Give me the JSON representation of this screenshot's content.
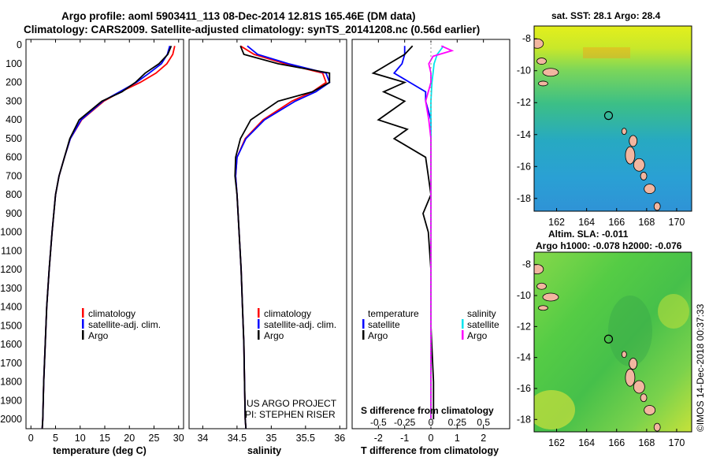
{
  "header": {
    "title_line1": "Argo profile: aoml 5903411_113 08-Dec-2014 12.81S 165.46E (DM data)",
    "title_line2": "Climatology: CARS2009. Satellite-adjusted climatology: synTS_20141208.nc (0.56d earlier)"
  },
  "depth_ticks": [
    0,
    100,
    200,
    300,
    400,
    500,
    600,
    700,
    800,
    900,
    1000,
    1100,
    1200,
    1300,
    1400,
    1500,
    1600,
    1700,
    1800,
    1900,
    2000
  ],
  "colors": {
    "climatology": "#ff0000",
    "satellite": "#0000ff",
    "argo": "#000000",
    "sat_salinity": "#00e5ee",
    "argo_salinity": "#ff00ff",
    "land": "#f2b6a0"
  },
  "panels": {
    "temperature": {
      "xlabel": "temperature (deg C)",
      "xticks": [
        0,
        5,
        10,
        15,
        20,
        25,
        30
      ],
      "xlim": [
        -1,
        31
      ],
      "legend": [
        {
          "label": "climatology",
          "key": "climatology"
        },
        {
          "label": "satellite-adj. clim.",
          "key": "satellite"
        },
        {
          "label": "Argo",
          "key": "argo"
        }
      ]
    },
    "salinity": {
      "xlabel": "salinity",
      "xticks": [
        34,
        34.5,
        35,
        35.5,
        36
      ],
      "xlim": [
        33.8,
        36.1
      ],
      "legend": [
        {
          "label": "climatology",
          "key": "climatology"
        },
        {
          "label": "satellite-adj. clim.",
          "key": "satellite"
        },
        {
          "label": "Argo",
          "key": "argo"
        }
      ],
      "credit1": "US ARGO PROJECT",
      "credit2": "PI: STEPHEN RISER"
    },
    "difference": {
      "xlabel": "T difference from climatology",
      "xticks": [
        -2,
        -1,
        0,
        1,
        2
      ],
      "xlim": [
        -3,
        3
      ],
      "top_label": "S difference from climatology",
      "top_ticks": [
        -0.5,
        -0.25,
        0,
        0.25,
        0.5
      ],
      "legend_t": {
        "title": "temperature",
        "items": [
          {
            "label": "satellite",
            "key": "satellite"
          },
          {
            "label": "Argo",
            "key": "argo"
          }
        ]
      },
      "legend_s": {
        "title": "salinity",
        "items": [
          {
            "label": "satellite",
            "key": "sat_salinity"
          },
          {
            "label": "Argo",
            "key": "argo_salinity"
          }
        ]
      }
    }
  },
  "maps": {
    "sst": {
      "title": "sat. SST: 28.1  Argo: 28.4",
      "lat_ticks": [
        -8,
        -10,
        -12,
        -14,
        -16,
        -18
      ],
      "lon_ticks": [
        162,
        164,
        166,
        168,
        170
      ],
      "lon_range": [
        160.5,
        171
      ],
      "lat_range": [
        -18.8,
        -7.2
      ]
    },
    "sla": {
      "title1": "Altim. SLA: -0.011",
      "title2": "Argo h1000: -0.078 h2000: -0.076",
      "lat_ticks": [
        -8,
        -10,
        -12,
        -14,
        -16,
        -18
      ],
      "lon_ticks": [
        162,
        164,
        166,
        168,
        170
      ],
      "lon_range": [
        160.5,
        171
      ],
      "lat_range": [
        -18.8,
        -7.2
      ]
    },
    "float_position": {
      "lon": 165.46,
      "lat": -12.81
    }
  },
  "footer_stamp": "©IMOS 14-Dec-2018 00:37:33",
  "chart_data": [
    {
      "type": "line",
      "title": "",
      "xlabel": "temperature (deg C)",
      "ylabel": "",
      "ylim": [
        2080,
        0
      ],
      "xlim": [
        -1,
        31
      ],
      "series": [
        {
          "name": "climatology",
          "depth": [
            5,
            50,
            100,
            150,
            200,
            250,
            300,
            400,
            500,
            600,
            700,
            800,
            1000,
            1200,
            1400,
            1600,
            1800,
            2000,
            2050
          ],
          "values": [
            29.2,
            28.8,
            27.6,
            25.4,
            22.2,
            18.2,
            14.8,
            10.3,
            8.0,
            6.8,
            5.7,
            5.0,
            4.3,
            3.7,
            3.2,
            2.9,
            2.6,
            2.4,
            2.3
          ]
        },
        {
          "name": "satellite-adj. clim.",
          "depth": [
            5,
            50,
            100,
            150,
            200,
            250,
            300,
            400,
            500,
            600,
            700,
            800,
            1000,
            1200,
            1400,
            1600,
            1800,
            2000,
            2050
          ],
          "values": [
            28.2,
            27.7,
            26.5,
            24.0,
            21.4,
            18.0,
            14.6,
            10.2,
            8.0,
            6.8,
            5.7,
            5.0,
            4.3,
            3.7,
            3.2,
            2.9,
            2.6,
            2.4,
            2.3
          ]
        },
        {
          "name": "Argo",
          "depth": [
            5,
            50,
            100,
            150,
            200,
            250,
            300,
            400,
            500,
            600,
            700,
            800,
            1000,
            1200,
            1400,
            1600,
            1800,
            2000,
            2050
          ],
          "values": [
            28.5,
            27.8,
            26.0,
            23.2,
            21.2,
            18.5,
            14.4,
            9.8,
            7.9,
            6.8,
            5.7,
            5.0,
            4.3,
            3.7,
            3.2,
            2.9,
            2.6,
            2.4,
            2.3
          ]
        }
      ]
    },
    {
      "type": "line",
      "title": "",
      "xlabel": "salinity",
      "ylabel": "",
      "ylim": [
        2080,
        0
      ],
      "xlim": [
        33.8,
        36.1
      ],
      "series": [
        {
          "name": "climatology",
          "depth": [
            5,
            50,
            100,
            150,
            200,
            250,
            300,
            400,
            500,
            600,
            700,
            800,
            1000,
            1200,
            1400,
            1600,
            1800,
            2000,
            2050
          ],
          "values": [
            34.55,
            34.75,
            35.2,
            35.75,
            35.8,
            35.6,
            35.3,
            34.88,
            34.62,
            34.5,
            34.48,
            34.5,
            34.53,
            34.56,
            34.58,
            34.6,
            34.61,
            34.62,
            34.63
          ]
        },
        {
          "name": "satellite-adj. clim.",
          "depth": [
            5,
            50,
            100,
            150,
            200,
            250,
            300,
            400,
            500,
            600,
            700,
            800,
            1000,
            1200,
            1400,
            1600,
            1800,
            2000,
            2050
          ],
          "values": [
            34.65,
            34.8,
            35.25,
            35.8,
            35.85,
            35.65,
            35.35,
            34.9,
            34.63,
            34.5,
            34.48,
            34.5,
            34.53,
            34.56,
            34.58,
            34.6,
            34.61,
            34.62,
            34.63
          ]
        },
        {
          "name": "Argo",
          "depth": [
            5,
            50,
            100,
            150,
            200,
            250,
            300,
            400,
            500,
            600,
            700,
            800,
            1000,
            1200,
            1400,
            1600,
            1800,
            2000,
            2050
          ],
          "values": [
            34.55,
            34.6,
            35.1,
            35.85,
            35.85,
            35.6,
            35.1,
            34.7,
            34.55,
            34.48,
            34.47,
            34.5,
            34.53,
            34.56,
            34.58,
            34.6,
            34.61,
            34.62,
            34.63
          ]
        }
      ]
    },
    {
      "type": "line",
      "title": "",
      "xlabel": "T difference from climatology",
      "ylabel": "",
      "ylim": [
        2080,
        0
      ],
      "xlim": [
        -3,
        3
      ],
      "series": [
        {
          "name": "temperature satellite",
          "depth": [
            5,
            50,
            100,
            150,
            200,
            250,
            300,
            400,
            500,
            600,
            700,
            800,
            1000,
            1200,
            1500,
            1800,
            2000
          ],
          "values": [
            -1.0,
            -1.0,
            -1.1,
            -1.4,
            -0.8,
            -0.2,
            -0.2,
            0.0,
            0.0,
            0.0,
            0.0,
            0.0,
            0.0,
            0.0,
            0.0,
            0.0,
            0.0
          ]
        },
        {
          "name": "temperature Argo",
          "depth": [
            5,
            50,
            100,
            150,
            200,
            250,
            300,
            400,
            450,
            500,
            600,
            700,
            800,
            900,
            1000,
            1200,
            1500,
            1800,
            2000
          ],
          "values": [
            -0.7,
            -1.0,
            -1.6,
            -2.2,
            -1.0,
            -1.8,
            -1.0,
            -2.0,
            -0.9,
            -1.4,
            -0.2,
            -0.1,
            0.0,
            -0.3,
            -0.1,
            0.0,
            0.0,
            0.1,
            0.1
          ]
        },
        {
          "name": "salinity satellite",
          "depth": [
            5,
            50,
            100,
            150,
            200,
            300,
            400,
            600,
            800,
            1000,
            1500,
            2000
          ],
          "values": [
            0.12,
            0.06,
            0.03,
            0.02,
            0.01,
            0.0,
            0.0,
            0.0,
            0.0,
            0.0,
            0.0,
            0.0
          ]
        },
        {
          "name": "salinity Argo",
          "depth": [
            5,
            30,
            60,
            100,
            150,
            200,
            300,
            400,
            500,
            600,
            800,
            1000,
            1500,
            2000
          ],
          "values": [
            0.1,
            0.2,
            0.02,
            -0.02,
            0.0,
            0.0,
            -0.05,
            -0.02,
            0.0,
            0.0,
            0.0,
            0.0,
            0.0,
            0.0
          ]
        }
      ]
    }
  ]
}
